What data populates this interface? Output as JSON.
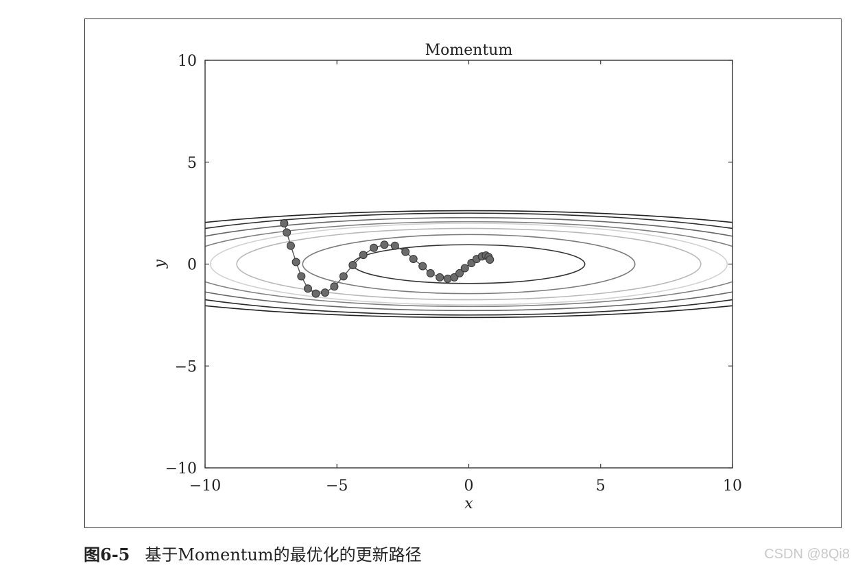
{
  "figure": {
    "caption_number": "图6-5",
    "caption_text": "基于Momentum的最优化的更新路径",
    "watermark": "CSDN @8Qi8"
  },
  "chart_data": {
    "type": "line",
    "title": "Momentum",
    "xlabel": "x",
    "ylabel": "y",
    "xlim": [
      -10,
      10
    ],
    "ylim": [
      -10,
      10
    ],
    "xticks": [
      -10,
      -5,
      0,
      5,
      10
    ],
    "yticks": [
      -10,
      -5,
      0,
      5,
      10
    ],
    "xtick_labels": [
      "−10",
      "−5",
      "0",
      "5",
      "10"
    ],
    "ytick_labels": [
      "−10",
      "−5",
      "0",
      "5",
      "10"
    ],
    "grid": false,
    "contours": [
      {
        "a": 4.4,
        "b": 0.95,
        "color": "#333333"
      },
      {
        "a": 6.3,
        "b": 1.45,
        "color": "#7a7a7a"
      },
      {
        "a": 8.8,
        "b": 1.75,
        "color": "#b8b8b8"
      },
      {
        "a": 9.8,
        "b": 2.0,
        "color": "#d2d2d2"
      },
      {
        "a": 11.0,
        "b": 2.08,
        "color": "#808080"
      },
      {
        "a": 12.5,
        "b": 2.28,
        "color": "#666666"
      },
      {
        "a": 14.0,
        "b": 2.5,
        "color": "#2a2a2a"
      },
      {
        "a": 16.0,
        "b": 2.62,
        "color": "#222222"
      }
    ],
    "series": [
      {
        "marker_color": "#6b6b6b",
        "line_color": "#555555",
        "x": [
          -7.0,
          -6.9,
          -6.75,
          -6.55,
          -6.35,
          -6.1,
          -5.8,
          -5.45,
          -5.1,
          -4.75,
          -4.4,
          -4.0,
          -3.6,
          -3.2,
          -2.8,
          -2.4,
          -2.1,
          -1.75,
          -1.45,
          -1.1,
          -0.8,
          -0.55,
          -0.35,
          -0.15,
          0.1,
          0.3,
          0.5,
          0.65,
          0.75,
          0.8
        ],
        "y": [
          2.0,
          1.55,
          0.9,
          0.1,
          -0.6,
          -1.2,
          -1.45,
          -1.4,
          -1.1,
          -0.6,
          -0.05,
          0.45,
          0.8,
          0.95,
          0.9,
          0.6,
          0.25,
          -0.1,
          -0.45,
          -0.65,
          -0.72,
          -0.65,
          -0.45,
          -0.2,
          0.05,
          0.25,
          0.38,
          0.42,
          0.35,
          0.22
        ]
      }
    ]
  }
}
